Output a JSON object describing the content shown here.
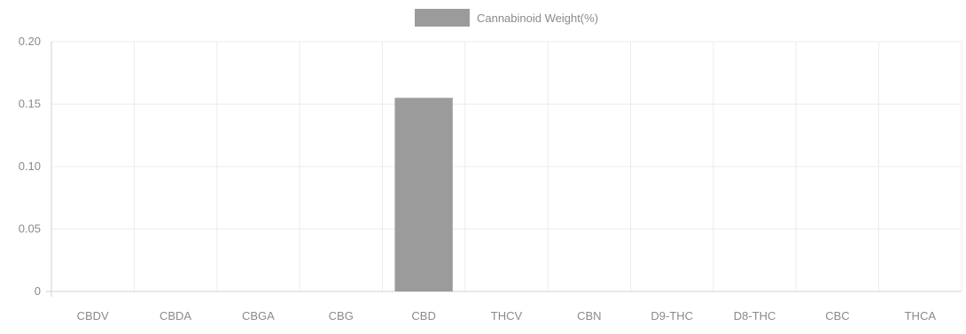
{
  "chart_data": {
    "type": "bar",
    "categories": [
      "CBDV",
      "CBDA",
      "CBGA",
      "CBG",
      "CBD",
      "THCV",
      "CBN",
      "D9-THC",
      "D8-THC",
      "CBC",
      "THCA"
    ],
    "series": [
      {
        "name": "Cannabinoid Weight(%)",
        "values": [
          0,
          0,
          0,
          0,
          0.155,
          0,
          0,
          0,
          0,
          0,
          0
        ]
      }
    ],
    "ylim": [
      0,
      0.2
    ],
    "yticks": [
      0,
      0.05,
      0.1,
      0.15,
      0.2
    ],
    "ytick_labels": [
      "0",
      "0.05",
      "0.10",
      "0.15",
      "0.20"
    ],
    "grid": true,
    "legend_position": "top-center",
    "colors": {
      "bar": "#9b9b9b",
      "grid": "#ececec",
      "axis": "#d0d0d0",
      "text": "#8a8a8a"
    }
  }
}
